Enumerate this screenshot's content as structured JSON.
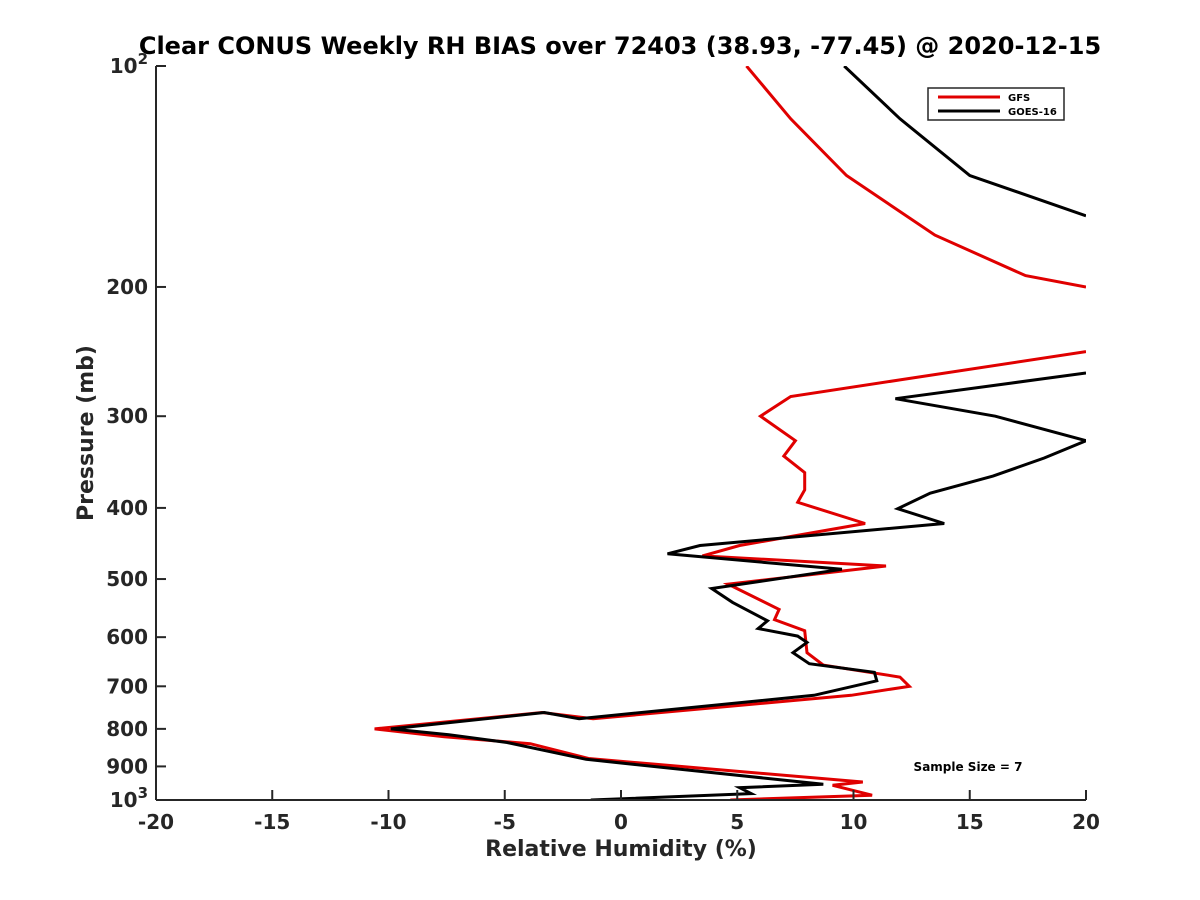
{
  "chart_data": {
    "type": "line",
    "title": "Clear CONUS Weekly RH BIAS over 72403 (38.93, -77.45) @ 2020-12-15",
    "xlabel": "Relative Humidity (%)",
    "ylabel": "Pressure (mb)",
    "xlim": [
      -20,
      20
    ],
    "ylim": [
      100,
      1000
    ],
    "y_scale": "log",
    "y_reversed": true,
    "grid": false,
    "legend_position": "top-right",
    "annotation": "Sample Size = 7",
    "x_ticks": [
      {
        "value": -20,
        "label": "-20"
      },
      {
        "value": -15,
        "label": "-15"
      },
      {
        "value": -10,
        "label": "-10"
      },
      {
        "value": -5,
        "label": "-5"
      },
      {
        "value": 0,
        "label": "0"
      },
      {
        "value": 5,
        "label": "5"
      },
      {
        "value": 10,
        "label": "10"
      },
      {
        "value": 15,
        "label": "15"
      },
      {
        "value": 20,
        "label": "20"
      }
    ],
    "y_ticks": [
      {
        "value": 100,
        "base": "10",
        "exp": "2"
      },
      {
        "value": 200,
        "base": "200",
        "exp": ""
      },
      {
        "value": 300,
        "base": "300",
        "exp": ""
      },
      {
        "value": 400,
        "base": "400",
        "exp": ""
      },
      {
        "value": 500,
        "base": "500",
        "exp": ""
      },
      {
        "value": 600,
        "base": "600",
        "exp": ""
      },
      {
        "value": 700,
        "base": "700",
        "exp": ""
      },
      {
        "value": 800,
        "base": "800",
        "exp": ""
      },
      {
        "value": 900,
        "base": "900",
        "exp": ""
      },
      {
        "value": 1000,
        "base": "10",
        "exp": "3"
      }
    ],
    "series": [
      {
        "name": "GFS",
        "color": "#e00000",
        "points": [
          [
            5.4,
            100
          ],
          [
            7.3,
            118
          ],
          [
            9.7,
            141
          ],
          [
            13.5,
            170
          ],
          [
            17.4,
            193
          ],
          [
            20.0,
            200
          ],
          [
            null,
            null
          ],
          [
            20.0,
            245
          ],
          [
            7.3,
            282
          ],
          [
            6.0,
            300
          ],
          [
            7.5,
            324
          ],
          [
            7.0,
            340
          ],
          [
            7.9,
            358
          ],
          [
            7.9,
            378
          ],
          [
            7.6,
            393
          ],
          [
            10.5,
            420
          ],
          [
            5.1,
            450
          ],
          [
            3.5,
            465
          ],
          [
            11.4,
            480
          ],
          [
            4.6,
            508
          ],
          [
            6.8,
            550
          ],
          [
            6.6,
            568
          ],
          [
            7.9,
            588
          ],
          [
            8.0,
            630
          ],
          [
            8.7,
            655
          ],
          [
            12.0,
            680
          ],
          [
            12.4,
            700
          ],
          [
            9.9,
            720
          ],
          [
            -1.2,
            775
          ],
          [
            -3.4,
            760
          ],
          [
            -10.6,
            800
          ],
          [
            -7.6,
            820
          ],
          [
            -3.9,
            838
          ],
          [
            -1.4,
            878
          ],
          [
            10.4,
            945
          ],
          [
            9.1,
            955
          ],
          [
            10.8,
            985
          ],
          [
            4.7,
            1000
          ]
        ]
      },
      {
        "name": "GOES-16",
        "color": "#000000",
        "points": [
          [
            9.6,
            100
          ],
          [
            12.0,
            118
          ],
          [
            15.0,
            141
          ],
          [
            20.0,
            160
          ],
          [
            null,
            null
          ],
          [
            20.0,
            262
          ],
          [
            11.8,
            284
          ],
          [
            16.1,
            300
          ],
          [
            20.0,
            324
          ],
          [
            18.2,
            342
          ],
          [
            16.0,
            362
          ],
          [
            13.3,
            382
          ],
          [
            11.9,
            401
          ],
          [
            13.9,
            420
          ],
          [
            3.4,
            450
          ],
          [
            2.0,
            462
          ],
          [
            9.5,
            485
          ],
          [
            3.9,
            515
          ],
          [
            4.8,
            538
          ],
          [
            6.3,
            570
          ],
          [
            5.9,
            584
          ],
          [
            7.6,
            598
          ],
          [
            8.0,
            610
          ],
          [
            7.4,
            630
          ],
          [
            8.1,
            652
          ],
          [
            10.9,
            670
          ],
          [
            11.0,
            688
          ],
          [
            8.3,
            720
          ],
          [
            -1.8,
            775
          ],
          [
            -3.3,
            760
          ],
          [
            -9.9,
            800
          ],
          [
            -7.4,
            815
          ],
          [
            -4.9,
            835
          ],
          [
            -1.5,
            880
          ],
          [
            8.7,
            952
          ],
          [
            5.1,
            962
          ],
          [
            5.6,
            980
          ],
          [
            -1.3,
            1000
          ]
        ]
      }
    ]
  }
}
